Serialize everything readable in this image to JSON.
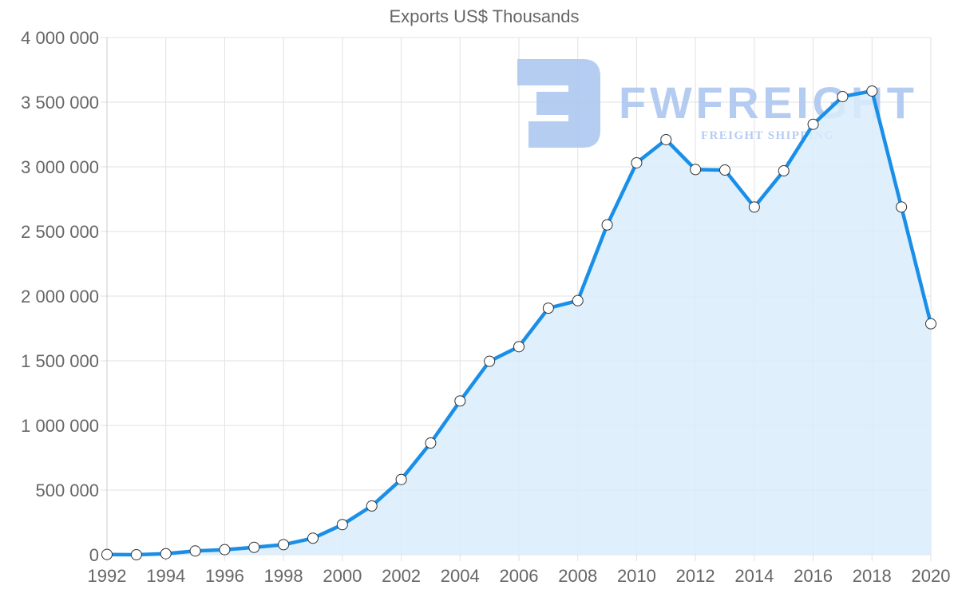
{
  "chart_data": {
    "type": "line",
    "title": "Exports US$ Thousands",
    "xlabel": "",
    "ylabel": "",
    "x": [
      1992,
      1993,
      1994,
      1995,
      1996,
      1997,
      1998,
      1999,
      2000,
      2001,
      2002,
      2003,
      2004,
      2005,
      2006,
      2007,
      2008,
      2009,
      2010,
      2011,
      2012,
      2013,
      2014,
      2015,
      2016,
      2017,
      2018,
      2019,
      2020
    ],
    "series": [
      {
        "name": "Exports US$ Thousands",
        "values": [
          2000,
          0,
          8000,
          29000,
          39000,
          57000,
          78000,
          128000,
          233000,
          377000,
          582000,
          864000,
          1189000,
          1496000,
          1609000,
          1907000,
          1965000,
          2551000,
          3031000,
          3210000,
          2979000,
          2975000,
          2689000,
          2969000,
          3329000,
          3543000,
          3586000,
          2689000,
          1786000
        ]
      }
    ],
    "x_tick_labels": [
      "1992",
      "1994",
      "1996",
      "1998",
      "2000",
      "2002",
      "2004",
      "2006",
      "2008",
      "2010",
      "2012",
      "2014",
      "2016",
      "2018",
      "2020"
    ],
    "y_tick_labels": [
      "0",
      "500 000",
      "1 000 000",
      "1 500 000",
      "2 000 000",
      "2 500 000",
      "3 000 000",
      "3 500 000",
      "4 000 000"
    ],
    "xlim": [
      1992,
      2020
    ],
    "ylim": [
      0,
      4000000
    ],
    "grid": true,
    "legend": "none",
    "fill": true
  },
  "colors": {
    "line": "#1a8fe8",
    "fill": "#d9ecfc",
    "grid": "#e2e2e2",
    "text": "#666666",
    "point_fill": "#ffffff",
    "point_stroke": "#333333",
    "watermark": "#a9c4f0"
  },
  "watermark": {
    "brand": "FWFREIGHT",
    "tagline": "FREIGHT SHIPPING"
  }
}
